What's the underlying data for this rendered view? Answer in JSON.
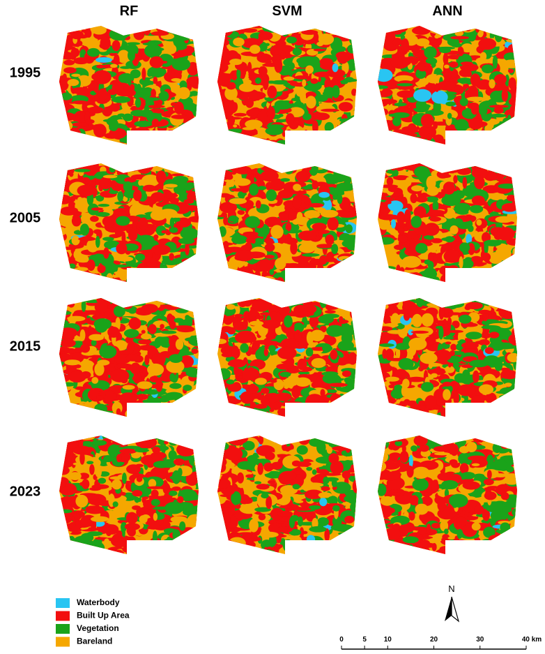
{
  "columns": [
    "RF",
    "SVM",
    "ANN"
  ],
  "rows": [
    "1995",
    "2005",
    "2015",
    "2023"
  ],
  "legend": [
    {
      "label": "Waterbody",
      "color": "#29c5f2"
    },
    {
      "label": "Built Up Area",
      "color": "#f20f0f"
    },
    {
      "label": "Vegetation",
      "color": "#1aa31a"
    },
    {
      "label": "Bareland",
      "color": "#f5a700"
    }
  ],
  "north": "N",
  "scale_bar": {
    "range": [
      0,
      40
    ],
    "ticks": [
      0,
      5,
      10,
      20,
      30,
      {
        "value": 40,
        "label": "40 km"
      }
    ]
  }
}
